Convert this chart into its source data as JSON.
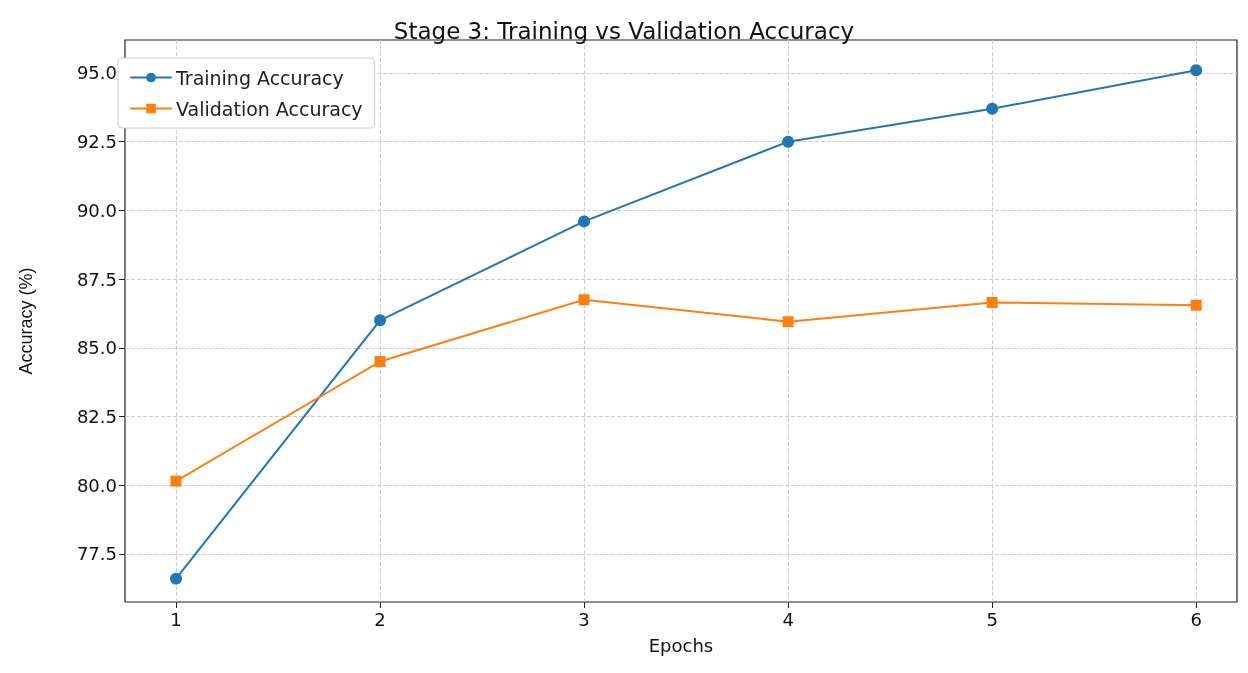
{
  "chart_data": {
    "type": "line",
    "title": "Stage 3: Training vs Validation Accuracy",
    "xlabel": "Epochs",
    "ylabel": "Accuracy (%)",
    "x": [
      1,
      2,
      3,
      4,
      5,
      6
    ],
    "series": [
      {
        "name": "Training Accuracy",
        "color": "#1f77b4",
        "marker": "circle",
        "values": [
          76.6,
          86.0,
          89.6,
          92.5,
          93.7,
          95.1
        ]
      },
      {
        "name": "Validation Accuracy",
        "color": "#ff7f0e",
        "marker": "square",
        "values": [
          80.15,
          84.5,
          86.75,
          85.95,
          86.65,
          86.55
        ]
      }
    ],
    "xlim": [
      0.75,
      6.2
    ],
    "xticks": [
      1,
      2,
      3,
      4,
      5,
      6
    ],
    "ylim": [
      75.75,
      96.2
    ],
    "yticks": [
      {
        "value": 77.5,
        "label": "77.5"
      },
      {
        "value": 80,
        "label": "80.0"
      },
      {
        "value": 82.5,
        "label": "82.5"
      },
      {
        "value": 85,
        "label": "85.0"
      },
      {
        "value": 87.5,
        "label": "87.5"
      },
      {
        "value": 90,
        "label": "90.0"
      },
      {
        "value": 92.5,
        "label": "92.5"
      },
      {
        "value": 95,
        "label": "95.0"
      }
    ],
    "grid": true,
    "legend": "top left",
    "line_style": "solid"
  }
}
